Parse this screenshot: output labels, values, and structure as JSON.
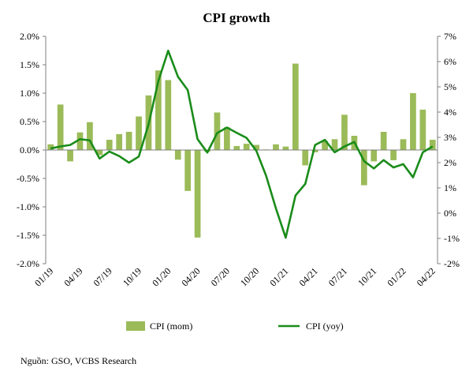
{
  "chart_data": {
    "type": "bar",
    "title": "CPI growth",
    "xlabel": "",
    "ylabel": "",
    "categories": [
      "01/19",
      "02/19",
      "03/19",
      "04/19",
      "05/19",
      "06/19",
      "07/19",
      "08/19",
      "09/19",
      "10/19",
      "11/19",
      "12/19",
      "01/20",
      "02/20",
      "03/20",
      "04/20",
      "05/20",
      "06/20",
      "07/20",
      "08/20",
      "09/20",
      "10/20",
      "11/20",
      "12/20",
      "01/21",
      "02/21",
      "03/21",
      "04/21",
      "05/21",
      "06/21",
      "07/21",
      "08/21",
      "09/21",
      "10/21",
      "11/21",
      "12/21",
      "01/22",
      "02/22",
      "03/22",
      "04/22"
    ],
    "x_tick_labels": [
      "01/19",
      "04/19",
      "07/19",
      "10/19",
      "01/20",
      "04/20",
      "07/20",
      "10/20",
      "01/21",
      "04/21",
      "07/21",
      "10/21",
      "01/22",
      "04/22"
    ],
    "y_left": {
      "min": -2.0,
      "max": 2.0,
      "step": 0.5,
      "ticks": [
        "2.0%",
        "1.5%",
        "1.0%",
        "0.5%",
        "0.0%",
        "-0.5%",
        "-1.0%",
        "-1.5%",
        "-2.0%"
      ]
    },
    "y_right": {
      "min": -2,
      "max": 7,
      "step": 1,
      "ticks": [
        "7%",
        "6%",
        "5%",
        "4%",
        "3%",
        "2%",
        "1%",
        "0%",
        "-1%",
        "-2%"
      ]
    },
    "series": [
      {
        "name": "CPI (mom)",
        "type": "bar",
        "axis": "left",
        "color": "#9bbb59",
        "values": [
          0.1,
          0.8,
          -0.2,
          0.31,
          0.49,
          -0.09,
          0.18,
          0.28,
          0.32,
          0.59,
          0.96,
          1.4,
          1.23,
          -0.17,
          -0.72,
          -1.54,
          -0.03,
          0.66,
          0.4,
          0.07,
          0.11,
          0.09,
          0.01,
          0.1,
          0.06,
          1.52,
          -0.27,
          -0.04,
          0.16,
          0.19,
          0.62,
          0.25,
          -0.62,
          -0.2,
          0.32,
          -0.18,
          0.19,
          1.0,
          0.71,
          0.18
        ]
      },
      {
        "name": "CPI (yoy)",
        "type": "line",
        "axis": "right",
        "color": "#1a8c1a",
        "values": [
          2.56,
          2.64,
          2.7,
          2.93,
          2.88,
          2.16,
          2.44,
          2.26,
          2.0,
          2.24,
          3.52,
          5.23,
          6.43,
          5.4,
          4.87,
          2.93,
          2.4,
          3.17,
          3.39,
          3.18,
          2.98,
          2.47,
          1.48,
          0.19,
          -0.97,
          0.7,
          1.16,
          2.7,
          2.9,
          2.41,
          2.64,
          2.82,
          2.06,
          1.77,
          2.1,
          1.81,
          1.94,
          1.42,
          2.41,
          2.64
        ]
      }
    ],
    "legend_position": "bottom",
    "grid": false
  },
  "source_note": "Nguồn: GSO, VCBS Research"
}
